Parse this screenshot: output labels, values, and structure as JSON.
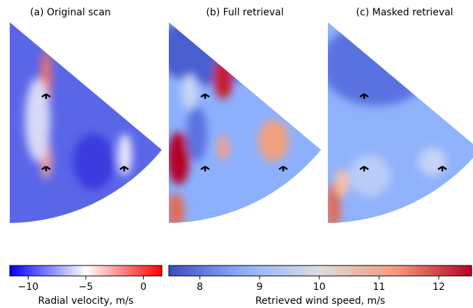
{
  "panels": [
    {
      "title": "(a) Original scan"
    },
    {
      "title": "(b) Full retrieval"
    },
    {
      "title": "(c) Masked retrieval"
    }
  ],
  "colorbars": [
    {
      "label": "Radial velocity, m/s",
      "lim": [
        -11.6,
        1.6
      ],
      "ticks": [
        {
          "value": -10,
          "label": "−10"
        },
        {
          "value": -5,
          "label": "−5"
        },
        0
      ],
      "colors": [
        "#0000ff",
        "#ffffff",
        "#ff0000"
      ]
    },
    {
      "label": "Retrieved wind speed, m/s",
      "lim": [
        7.48,
        12.55
      ],
      "ticks": [
        8,
        9,
        10,
        11,
        12
      ],
      "colors": [
        "#3b4cc0",
        "#8db0fe",
        "#dddddd",
        "#f49a7b",
        "#b40426"
      ]
    }
  ]
}
